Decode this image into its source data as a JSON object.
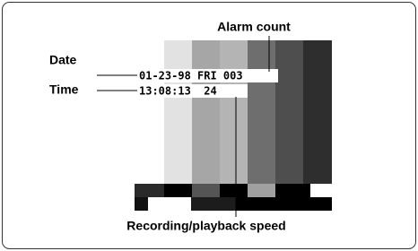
{
  "labels": {
    "alarm_count": "Alarm count",
    "date": "Date",
    "time": "Time",
    "speed": "Recording/playback speed"
  },
  "screen": {
    "line1": "01-23-98 FRI 003",
    "line2": "13:08:13  24"
  }
}
